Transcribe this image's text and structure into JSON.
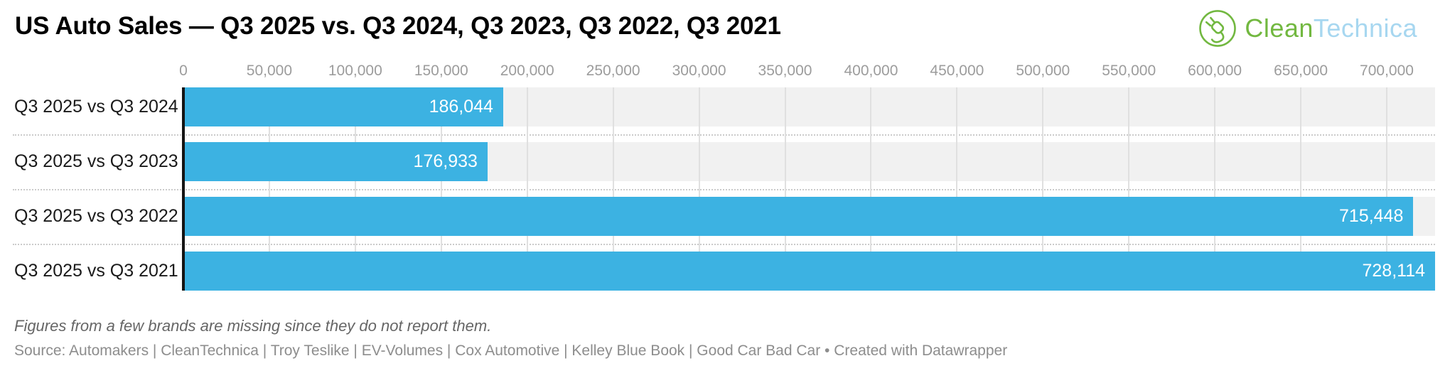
{
  "header": {
    "title": "US Auto Sales — Q3 2025 vs. Q3 2024, Q3 2023, Q3 2022, Q3 2021",
    "logo": {
      "clean": "Clean",
      "technica": "Technica",
      "green": "#72b840",
      "blue": "#a7d7f0"
    }
  },
  "chart_data": {
    "type": "bar",
    "orientation": "horizontal",
    "title": "US Auto Sales — Q3 2025 vs. Q3 2024, Q3 2023, Q3 2022, Q3 2021",
    "categories": [
      "Q3 2025 vs Q3 2024",
      "Q3 2025 vs Q3 2023",
      "Q3 2025 vs Q3 2022",
      "Q3 2025 vs Q3 2021"
    ],
    "values": [
      186044,
      176933,
      715448,
      728114
    ],
    "value_labels": [
      "186,044",
      "176,933",
      "715,448",
      "728,114"
    ],
    "xlim": [
      0,
      728114
    ],
    "x_ticks": [
      0,
      50000,
      100000,
      150000,
      200000,
      250000,
      300000,
      350000,
      400000,
      450000,
      500000,
      550000,
      600000,
      650000,
      700000
    ],
    "x_tick_labels": [
      "0",
      "50,000",
      "100,000",
      "150,000",
      "200,000",
      "250,000",
      "300,000",
      "350,000",
      "400,000",
      "450,000",
      "500,000",
      "550,000",
      "600,000",
      "650,000",
      "700,000"
    ],
    "grid": true,
    "legend": "none",
    "bar_color": "#3cb2e2",
    "track_color": "#f1f1f1",
    "axis_line_color": "#141414"
  },
  "footer": {
    "note": "Figures from a few brands are missing since they do not report them.",
    "source": "Source: Automakers | CleanTechnica | Troy Teslike | EV-Volumes | Cox Automotive | Kelley Blue Book | Good Car Bad Car • Created with Datawrapper"
  }
}
